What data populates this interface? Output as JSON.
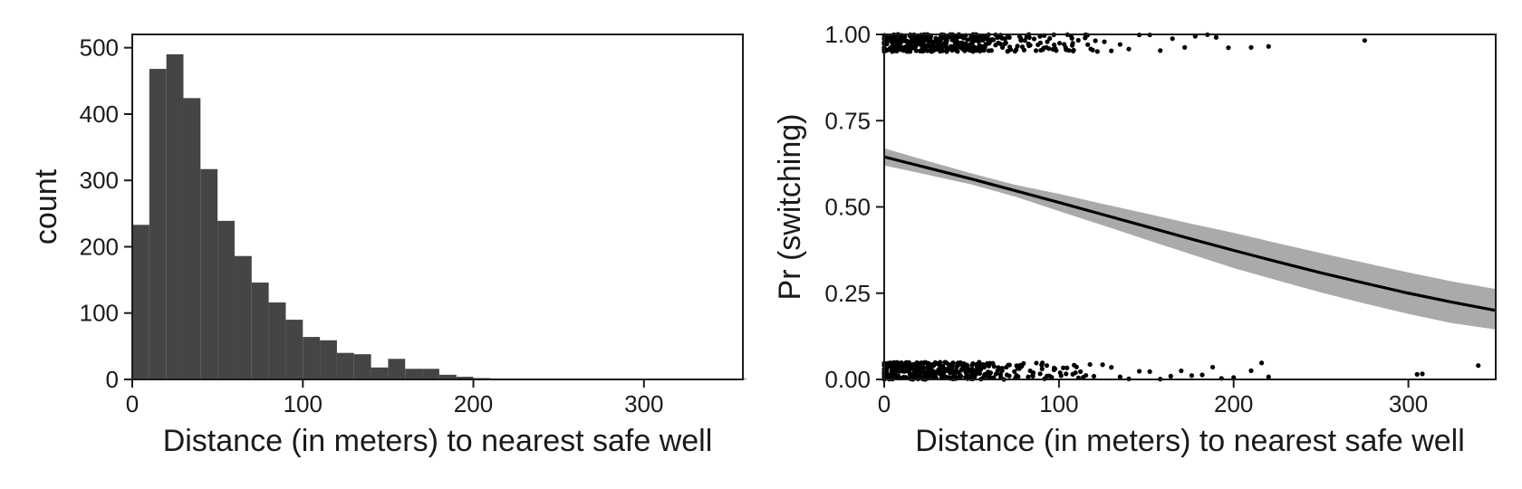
{
  "chart_data": [
    {
      "type": "bar",
      "subtype": "histogram",
      "xlabel": "Distance (in meters) to nearest safe well",
      "ylabel": "count",
      "xlim": [
        0,
        358
      ],
      "ylim": [
        0,
        520
      ],
      "xticks": [
        0,
        100,
        200,
        300
      ],
      "yticks": [
        0,
        100,
        200,
        300,
        400,
        500
      ],
      "grid": false,
      "bin_width": 10,
      "bin_start": 0,
      "values": [
        233,
        468,
        490,
        424,
        317,
        239,
        186,
        146,
        116,
        90,
        64,
        59,
        40,
        38,
        18,
        31,
        16,
        16,
        7,
        4,
        2,
        1,
        1,
        1,
        1,
        1,
        1,
        1,
        1,
        1,
        1,
        1,
        1,
        1,
        1,
        1
      ],
      "bar_color": "#454545"
    },
    {
      "type": "line",
      "subtype": "logistic-fit-with-jittered-points",
      "xlabel": "Distance (in meters) to nearest safe well",
      "ylabel": "Pr (switching)",
      "xlim": [
        0,
        350
      ],
      "ylim": [
        0,
        1
      ],
      "xticks": [
        0,
        100,
        200,
        300
      ],
      "yticks": [
        "0.00",
        "0.25",
        "0.50",
        "0.75",
        "1.00"
      ],
      "grid": false,
      "fit": {
        "x": [
          0,
          25,
          50,
          75,
          100,
          125,
          150,
          175,
          200,
          225,
          250,
          275,
          300,
          325,
          350
        ],
        "y": [
          0.645,
          0.613,
          0.581,
          0.547,
          0.513,
          0.478,
          0.443,
          0.408,
          0.374,
          0.341,
          0.309,
          0.279,
          0.25,
          0.224,
          0.2
        ],
        "lower": [
          0.62,
          0.593,
          0.565,
          0.53,
          0.488,
          0.447,
          0.405,
          0.364,
          0.323,
          0.287,
          0.252,
          0.22,
          0.19,
          0.163,
          0.145
        ],
        "upper": [
          0.67,
          0.633,
          0.597,
          0.564,
          0.538,
          0.509,
          0.481,
          0.452,
          0.425,
          0.395,
          0.366,
          0.338,
          0.31,
          0.284,
          0.262
        ],
        "line_color": "#000000",
        "band_color": "#aaaaaa"
      },
      "points": {
        "switched_1": [
          0,
          2,
          4,
          5,
          7,
          8,
          10,
          12,
          13,
          15,
          16,
          18,
          19,
          20,
          22,
          23,
          25,
          26,
          28,
          30,
          31,
          33,
          35,
          37,
          38,
          40,
          42,
          44,
          46,
          48,
          50,
          52,
          54,
          56,
          58,
          60,
          62,
          65,
          68,
          70,
          72,
          75,
          78,
          80,
          83,
          86,
          88,
          92,
          95,
          98,
          102,
          106,
          110,
          114,
          118,
          122,
          126,
          130,
          135,
          140,
          146,
          152,
          158,
          165,
          172,
          178,
          185,
          190,
          197,
          210,
          220,
          275
        ],
        "switched_0": [
          0,
          1,
          3,
          4,
          6,
          8,
          9,
          11,
          13,
          14,
          16,
          17,
          19,
          21,
          22,
          24,
          26,
          27,
          29,
          31,
          33,
          35,
          36,
          38,
          40,
          42,
          44,
          46,
          48,
          50,
          53,
          55,
          58,
          60,
          62,
          65,
          68,
          71,
          74,
          77,
          80,
          84,
          88,
          92,
          96,
          100,
          105,
          110,
          115,
          120,
          125,
          130,
          135,
          140,
          146,
          152,
          158,
          164,
          170,
          176,
          182,
          188,
          193,
          200,
          210,
          216,
          220,
          305,
          308,
          340
        ]
      },
      "point_color": "#000000"
    }
  ]
}
